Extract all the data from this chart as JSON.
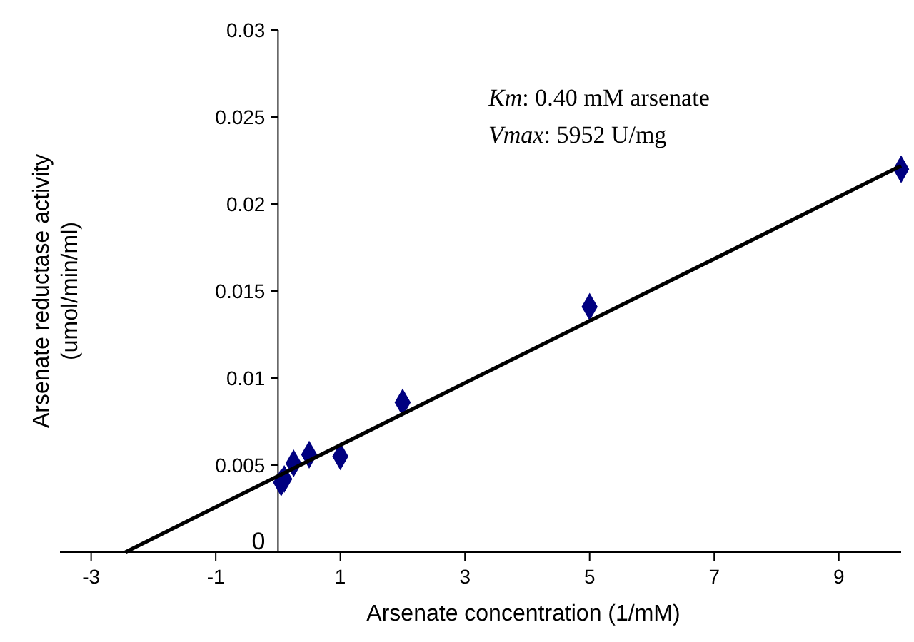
{
  "chart_data": {
    "type": "scatter",
    "xlabel": "Arsenate concentration (1/mM)",
    "ylabel": "Arsenate reductase activity\n(umol/min/ml)",
    "xlim": [
      -3.5,
      10
    ],
    "xticks": [
      -3,
      -1,
      1,
      3,
      5,
      7,
      9
    ],
    "ylim": [
      0,
      0.03
    ],
    "yticks": [
      0,
      0.005,
      0.01,
      0.015,
      0.02,
      0.025,
      0.03
    ],
    "grid": false,
    "marker": "diamond",
    "series": [
      {
        "color": "#000080",
        "x": [
          0.05,
          0.1,
          0.25,
          0.5,
          1,
          2,
          5,
          10
        ],
        "values": [
          0.004,
          0.0042,
          0.0051,
          0.0056,
          0.0055,
          0.0086,
          0.0141,
          0.022
        ]
      },
      {
        "type": "line",
        "color": "#000000",
        "x": [
          -2.45,
          10
        ],
        "values": [
          0,
          0.0222
        ],
        "marker": "none",
        "line_style": "solid"
      }
    ],
    "annotations": [
      "Km: 0.40 mM arsenate",
      "Vmax: 5952 U/mg"
    ]
  }
}
